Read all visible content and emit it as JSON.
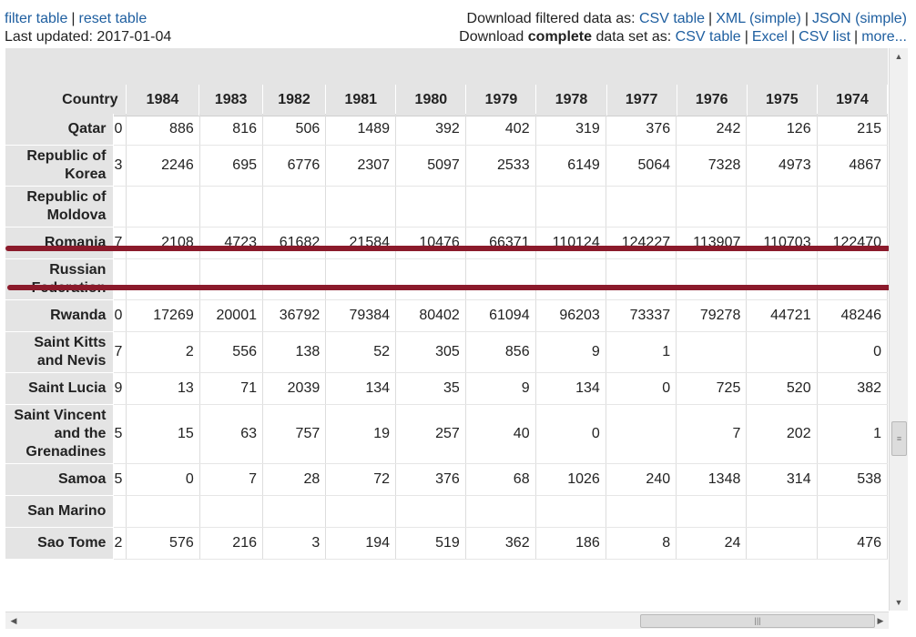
{
  "links": {
    "filter": "filter table",
    "reset": "reset table",
    "last_updated_label": "Last updated: 2017-01-04",
    "download_filtered_label": "Download filtered data as:",
    "download_complete_prefix": "Download",
    "download_complete_bold": "complete",
    "download_complete_suffix": "data set as:",
    "filtered": [
      "CSV table",
      "XML (simple)",
      "JSON (simple)"
    ],
    "complete": [
      "CSV table",
      "Excel",
      "CSV list",
      "more..."
    ]
  },
  "table": {
    "country_header": "Country",
    "years": [
      "1984",
      "1983",
      "1982",
      "1981",
      "1980",
      "1979",
      "1978",
      "1977",
      "1976",
      "1975",
      "1974"
    ],
    "rows": [
      {
        "country": "Qatar",
        "stub": "0",
        "values": [
          "886",
          "816",
          "506",
          "1489",
          "392",
          "402",
          "319",
          "376",
          "242",
          "126",
          "215"
        ]
      },
      {
        "country": "Republic of Korea",
        "stub": "3",
        "values": [
          "2246",
          "695",
          "6776",
          "2307",
          "5097",
          "2533",
          "6149",
          "5064",
          "7328",
          "4973",
          "4867"
        ]
      },
      {
        "country": "Republic of Moldova",
        "stub": "",
        "values": [
          "",
          "",
          "",
          "",
          "",
          "",
          "",
          "",
          "",
          "",
          ""
        ]
      },
      {
        "country": "Romania",
        "stub": "7",
        "values": [
          "2108",
          "4723",
          "61682",
          "21584",
          "10476",
          "66371",
          "110124",
          "124227",
          "113907",
          "110703",
          "122470"
        ]
      },
      {
        "country": "Russian Federation",
        "stub": "",
        "values": [
          "",
          "",
          "",
          "",
          "",
          "",
          "",
          "",
          "",
          "",
          ""
        ]
      },
      {
        "country": "Rwanda",
        "stub": "0",
        "values": [
          "17269",
          "20001",
          "36792",
          "79384",
          "80402",
          "61094",
          "96203",
          "73337",
          "79278",
          "44721",
          "48246"
        ]
      },
      {
        "country": "Saint Kitts and Nevis",
        "stub": "7",
        "values": [
          "2",
          "556",
          "138",
          "52",
          "305",
          "856",
          "9",
          "1",
          "",
          "",
          "0"
        ]
      },
      {
        "country": "Saint Lucia",
        "stub": "9",
        "values": [
          "13",
          "71",
          "2039",
          "134",
          "35",
          "9",
          "134",
          "0",
          "725",
          "520",
          "382"
        ]
      },
      {
        "country": "Saint Vincent and the Grenadines",
        "stub": "5",
        "values": [
          "15",
          "63",
          "757",
          "19",
          "257",
          "40",
          "0",
          "",
          "7",
          "202",
          "1"
        ]
      },
      {
        "country": "Samoa",
        "stub": "5",
        "values": [
          "0",
          "7",
          "28",
          "72",
          "376",
          "68",
          "1026",
          "240",
          "1348",
          "314",
          "538"
        ]
      },
      {
        "country": "San Marino",
        "stub": "",
        "values": [
          "",
          "",
          "",
          "",
          "",
          "",
          "",
          "",
          "",
          "",
          ""
        ]
      },
      {
        "country": "Sao Tome",
        "stub": "2",
        "values": [
          "576",
          "216",
          "3",
          "194",
          "519",
          "362",
          "186",
          "8",
          "24",
          "",
          "476"
        ]
      }
    ]
  },
  "highlight_color": "#8b1a2b"
}
